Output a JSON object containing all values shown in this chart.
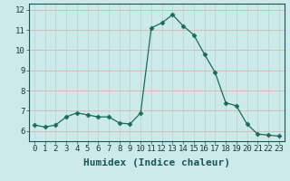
{
  "x": [
    0,
    1,
    2,
    3,
    4,
    5,
    6,
    7,
    8,
    9,
    10,
    11,
    12,
    13,
    14,
    15,
    16,
    17,
    18,
    19,
    20,
    21,
    22,
    23
  ],
  "y": [
    6.3,
    6.2,
    6.3,
    6.7,
    6.9,
    6.8,
    6.7,
    6.7,
    6.4,
    6.35,
    6.9,
    11.1,
    11.35,
    11.75,
    11.2,
    10.75,
    9.8,
    8.9,
    7.4,
    7.25,
    6.35,
    5.85,
    5.8,
    5.75
  ],
  "line_color": "#1a6b5a",
  "marker": "D",
  "marker_size": 2.5,
  "bg_color": "#cceaea",
  "grid_color": "#c0d0d0",
  "grid_color2": "#d8a8a8",
  "xlabel": "Humidex (Indice chaleur)",
  "xlabel_fontsize": 8,
  "ylim": [
    5.5,
    12.3
  ],
  "yticks": [
    6,
    7,
    8,
    9,
    10,
    11,
    12
  ],
  "xticks": [
    0,
    1,
    2,
    3,
    4,
    5,
    6,
    7,
    8,
    9,
    10,
    11,
    12,
    13,
    14,
    15,
    16,
    17,
    18,
    19,
    20,
    21,
    22,
    23
  ],
  "tick_fontsize": 6.5,
  "xlim": [
    -0.5,
    23.5
  ]
}
